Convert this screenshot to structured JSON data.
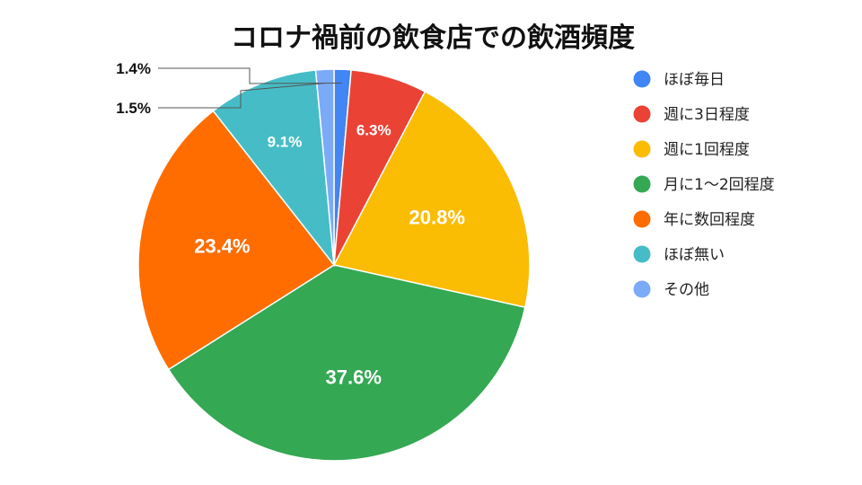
{
  "chart_data": {
    "type": "pie",
    "title": "コロナ禍前の飲食店での飲酒頻度",
    "legend_position": "right",
    "start_angle": "top",
    "direction": "clockwise",
    "slices": [
      {
        "label": "ほぼ毎日",
        "value": 1.4,
        "display": "1.4%",
        "color": "#4285F4"
      },
      {
        "label": "週に3日程度",
        "value": 6.3,
        "display": "6.3%",
        "color": "#EA4335"
      },
      {
        "label": "週に1回程度",
        "value": 20.8,
        "display": "20.8%",
        "color": "#FBBC04"
      },
      {
        "label": "月に1〜2回程度",
        "value": 37.6,
        "display": "37.6%",
        "color": "#34A853"
      },
      {
        "label": "年に数回程度",
        "value": 23.4,
        "display": "23.4%",
        "color": "#FF6D01"
      },
      {
        "label": "ほぼ無い",
        "value": 9.1,
        "display": "9.1%",
        "color": "#46BDC6"
      },
      {
        "label": "その他",
        "value": 1.5,
        "display": "1.5%",
        "color": "#7BAAF7"
      }
    ]
  }
}
